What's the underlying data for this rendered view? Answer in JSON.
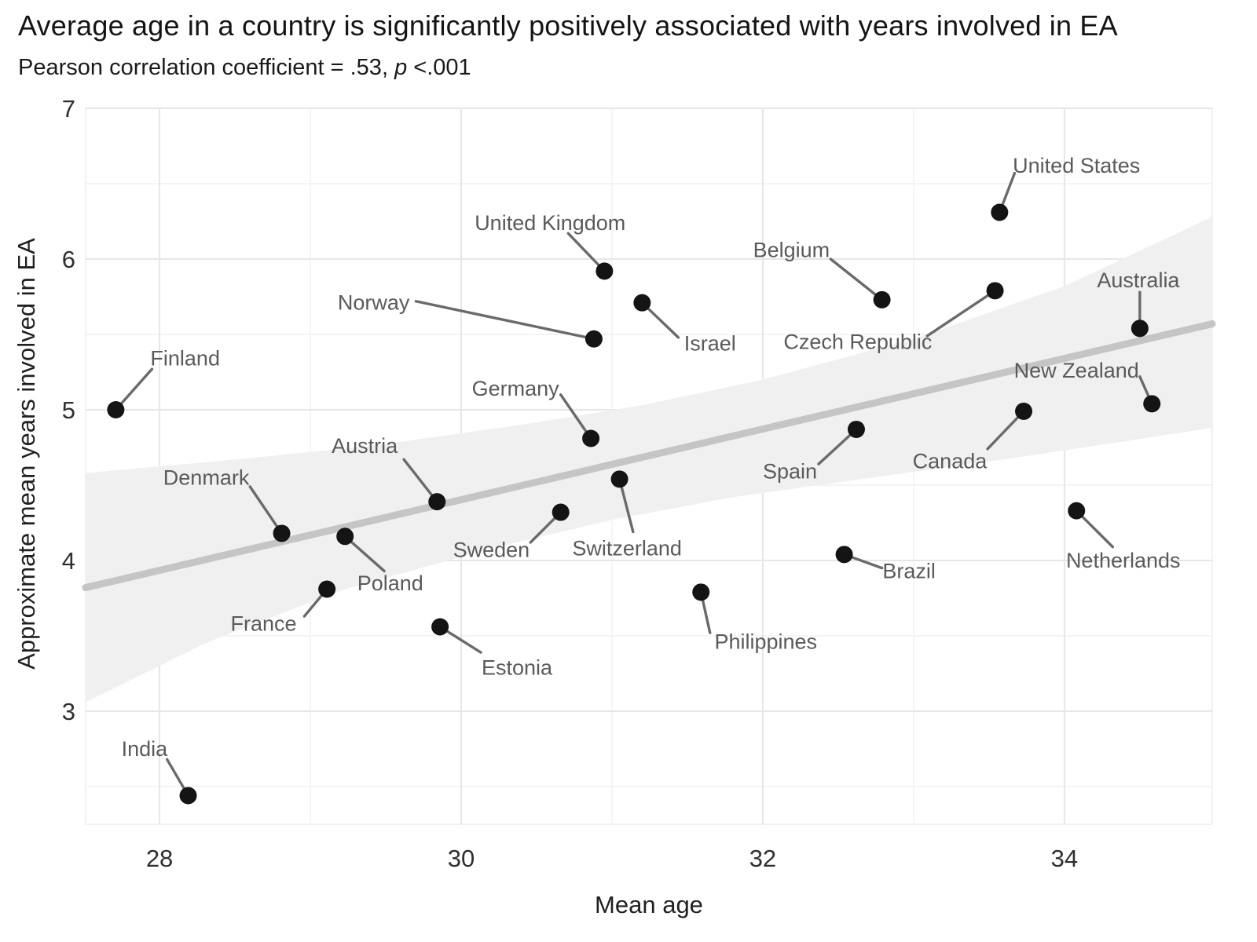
{
  "header": {
    "title": "Average age in a country is significantly positively associated with years involved in EA",
    "subtitle_prefix": "Pearson correlation coefficient = .53, ",
    "subtitle_p": "p",
    "subtitle_suffix": " <.001"
  },
  "chart_data": {
    "type": "scatter",
    "title": "Average age in a country is significantly positively associated with years involved in EA",
    "subtitle": "Pearson correlation coefficient = .53, p <.001",
    "xlabel": "Mean age",
    "ylabel": "Approximate mean years involved in EA",
    "xlim": [
      27.51,
      34.98
    ],
    "ylim": [
      2.25,
      7.0
    ],
    "xticks": [
      28,
      30,
      32,
      34
    ],
    "yticks": [
      3,
      4,
      5,
      6,
      7
    ],
    "x_minor": [
      29,
      31,
      33,
      35
    ],
    "y_minor": [
      2.5,
      3.5,
      4.5,
      5.5,
      6.5
    ],
    "grid": true,
    "legend": "none",
    "correlation": {
      "pearson_r": 0.53,
      "p_value": "<.001"
    },
    "points": [
      {
        "name": "Finland",
        "x": 27.71,
        "y": 5.0,
        "lx": 28.17,
        "ly": 5.34,
        "ex": 27.95,
        "ey": 5.27
      },
      {
        "name": "India",
        "x": 28.19,
        "y": 2.44,
        "lx": 27.9,
        "ly": 2.75,
        "ex": 28.05,
        "ey": 2.68
      },
      {
        "name": "Denmark",
        "x": 28.81,
        "y": 4.18,
        "lx": 28.31,
        "ly": 4.55,
        "ex": 28.6,
        "ey": 4.49
      },
      {
        "name": "France",
        "x": 29.11,
        "y": 3.81,
        "lx": 28.69,
        "ly": 3.58,
        "ex": 28.96,
        "ey": 3.63
      },
      {
        "name": "Poland",
        "x": 29.23,
        "y": 4.16,
        "lx": 29.53,
        "ly": 3.85,
        "ex": 29.49,
        "ey": 3.93
      },
      {
        "name": "Austria",
        "x": 29.84,
        "y": 4.39,
        "lx": 29.36,
        "ly": 4.76,
        "ex": 29.62,
        "ey": 4.67
      },
      {
        "name": "Estonia",
        "x": 29.86,
        "y": 3.56,
        "lx": 30.37,
        "ly": 3.29,
        "ex": 30.13,
        "ey": 3.39
      },
      {
        "name": "Sweden",
        "x": 30.66,
        "y": 4.32,
        "lx": 30.2,
        "ly": 4.07,
        "ex": 30.46,
        "ey": 4.12
      },
      {
        "name": "Germany",
        "x": 30.86,
        "y": 4.81,
        "lx": 30.36,
        "ly": 5.14,
        "ex": 30.66,
        "ey": 5.1
      },
      {
        "name": "Norway",
        "x": 30.88,
        "y": 5.47,
        "lx": 29.42,
        "ly": 5.71,
        "ex": 29.7,
        "ey": 5.72
      },
      {
        "name": "United Kingdom",
        "x": 30.95,
        "y": 5.92,
        "lx": 30.59,
        "ly": 6.24,
        "ex": 30.71,
        "ey": 6.17
      },
      {
        "name": "Switzerland",
        "x": 31.05,
        "y": 4.54,
        "lx": 31.1,
        "ly": 4.08,
        "ex": 31.14,
        "ey": 4.19
      },
      {
        "name": "Israel",
        "x": 31.2,
        "y": 5.71,
        "lx": 31.65,
        "ly": 5.44,
        "ex": 31.44,
        "ey": 5.48
      },
      {
        "name": "Philippines",
        "x": 31.59,
        "y": 3.79,
        "lx": 32.02,
        "ly": 3.46,
        "ex": 31.65,
        "ey": 3.52
      },
      {
        "name": "Belgium",
        "x": 32.79,
        "y": 5.73,
        "lx": 32.19,
        "ly": 6.06,
        "ex": 32.45,
        "ey": 6.0
      },
      {
        "name": "Brazil",
        "x": 32.54,
        "y": 4.04,
        "lx": 32.97,
        "ly": 3.93,
        "ex": 32.79,
        "ey": 3.95
      },
      {
        "name": "Spain",
        "x": 32.62,
        "y": 4.87,
        "lx": 32.18,
        "ly": 4.59,
        "ex": 32.37,
        "ey": 4.64
      },
      {
        "name": "Czech Republic",
        "x": 33.54,
        "y": 5.79,
        "lx": 32.63,
        "ly": 5.45,
        "ex": 33.09,
        "ey": 5.49
      },
      {
        "name": "United States",
        "x": 33.57,
        "y": 6.31,
        "lx": 34.08,
        "ly": 6.62,
        "ex": 33.67,
        "ey": 6.57
      },
      {
        "name": "Canada",
        "x": 33.73,
        "y": 4.99,
        "lx": 33.24,
        "ly": 4.66,
        "ex": 33.49,
        "ey": 4.74
      },
      {
        "name": "Netherlands",
        "x": 34.08,
        "y": 4.33,
        "lx": 34.39,
        "ly": 4.0,
        "ex": 34.32,
        "ey": 4.09
      },
      {
        "name": "Australia",
        "x": 34.5,
        "y": 5.54,
        "lx": 34.49,
        "ly": 5.86,
        "ex": 34.5,
        "ey": 5.78
      },
      {
        "name": "New Zealand",
        "x": 34.58,
        "y": 5.04,
        "lx": 34.08,
        "ly": 5.26,
        "ex": 34.5,
        "ey": 5.22
      }
    ],
    "regression_line": {
      "x1": 27.51,
      "y1": 3.82,
      "x2": 34.98,
      "y2": 5.57
    },
    "ci_band": {
      "upper": [
        [
          27.51,
          4.58
        ],
        [
          28.4,
          4.66
        ],
        [
          29.4,
          4.76
        ],
        [
          30.4,
          4.9
        ],
        [
          31.2,
          5.03
        ],
        [
          32.0,
          5.2
        ],
        [
          33.0,
          5.47
        ],
        [
          34.0,
          5.82
        ],
        [
          34.98,
          6.28
        ]
      ],
      "lower": [
        [
          27.51,
          3.06
        ],
        [
          28.3,
          3.45
        ],
        [
          29.2,
          3.8
        ],
        [
          30.2,
          4.08
        ],
        [
          31.0,
          4.27
        ],
        [
          31.8,
          4.42
        ],
        [
          32.8,
          4.56
        ],
        [
          33.8,
          4.7
        ],
        [
          34.98,
          4.88
        ]
      ]
    },
    "colors": {
      "point": "#141414",
      "leader_line": "#6a6a6a",
      "point_label": "#5a5a5a",
      "regression_line": "#c5c5c5",
      "ci_band": "#f0f0f0",
      "grid_major": "#e6e6e6",
      "grid_minor": "#f1f1f1",
      "panel_border": "#ededed",
      "tick_label": "#2f2f2f",
      "axis_title": "#1f1f1f",
      "background": "#ffffff"
    }
  }
}
